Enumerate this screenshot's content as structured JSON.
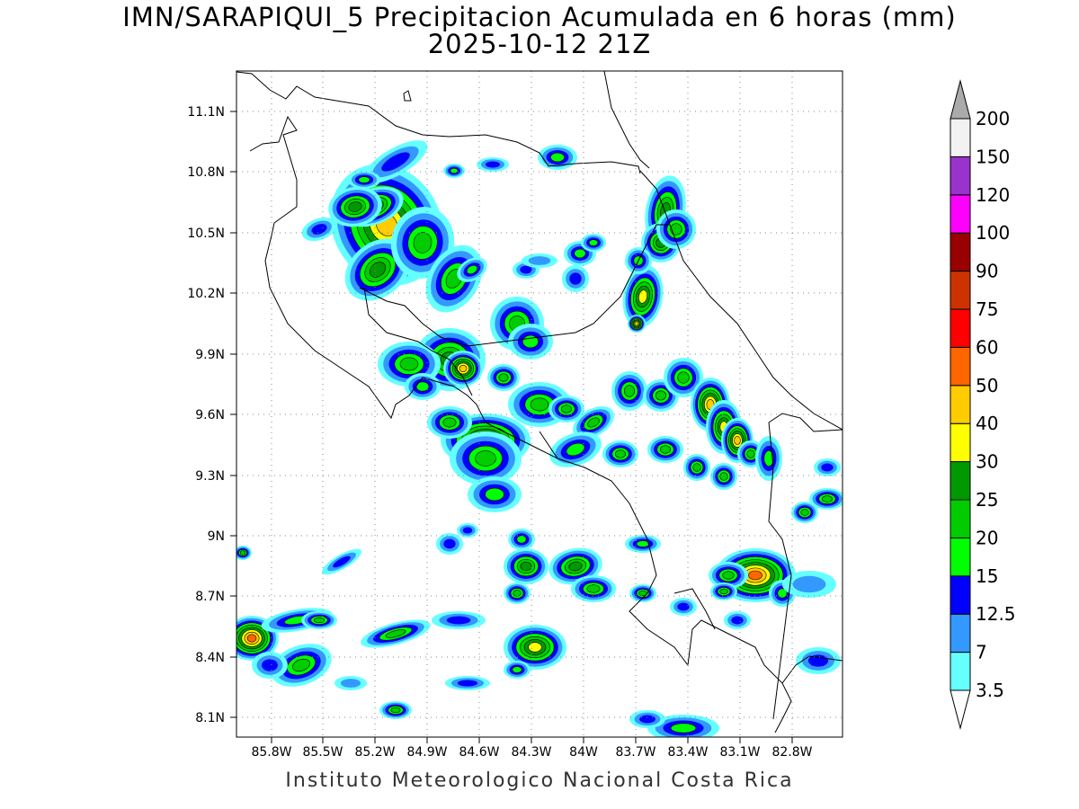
{
  "title": {
    "line1": "IMN/SARAPIQUI_5 Precipitacion Acumulada en 6 horas (mm)",
    "line2": "2025-10-12 21Z"
  },
  "footer": "Instituto Meteorologico Nacional Costa Rica",
  "map": {
    "lat_labels": [
      "11.1N",
      "10.8N",
      "10.5N",
      "10.2N",
      "9.9N",
      "9.6N",
      "9.3N",
      "9N",
      "8.7N",
      "8.4N",
      "8.1N"
    ],
    "lon_labels": [
      "85.8W",
      "85.5W",
      "85.2W",
      "84.9W",
      "84.6W",
      "84.3W",
      "84W",
      "83.7W",
      "83.4W",
      "83.1W",
      "82.8W"
    ],
    "grid": "dotted"
  },
  "colorbar": {
    "labels": [
      "3.5",
      "7",
      "12.5",
      "15",
      "20",
      "25",
      "30",
      "40",
      "50",
      "60",
      "75",
      "90",
      "100",
      "120",
      "150",
      "200"
    ],
    "colors": [
      "#66ffff",
      "#3399ff",
      "#0000ff",
      "#00ff00",
      "#00cc00",
      "#009900",
      "#ffff00",
      "#ffcc00",
      "#ff6600",
      "#ff0000",
      "#cc3300",
      "#990000",
      "#ff00ff",
      "#9933cc",
      "#f2f2f2",
      "#aaaaaa"
    ]
  },
  "precip_levels": {
    "cyan": "#66ffff",
    "lightblue": "#3399ff",
    "blue": "#0000ff",
    "green15": "#00ff00",
    "green20": "#00cc00",
    "green25": "#009900",
    "yellow": "#ffff00",
    "orange40": "#ffcc00",
    "orange50": "#ff6600",
    "red": "#ff0000"
  }
}
